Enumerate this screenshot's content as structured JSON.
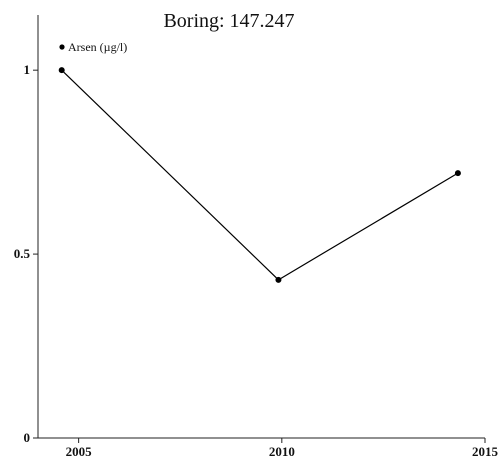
{
  "chart_data": {
    "type": "line",
    "title": "Boring: 147.247",
    "xlabel": "",
    "ylabel": "",
    "xlim": [
      2004,
      2015
    ],
    "ylim": [
      0,
      1.15
    ],
    "x_ticks": [
      2005,
      2010,
      2015
    ],
    "y_ticks": [
      0,
      0.5,
      1
    ],
    "x_tick_labels": [
      "2005",
      "2010",
      "2015"
    ],
    "y_tick_labels": [
      "0",
      "0.5",
      "1"
    ],
    "grid": false,
    "legend_position": "top-left",
    "series": [
      {
        "name": "Arsen (µg/l)",
        "color": "#000000",
        "x": [
          "2004-08",
          "2009-12",
          "2014-05"
        ],
        "y": [
          1.0,
          0.43,
          0.72
        ]
      }
    ]
  }
}
